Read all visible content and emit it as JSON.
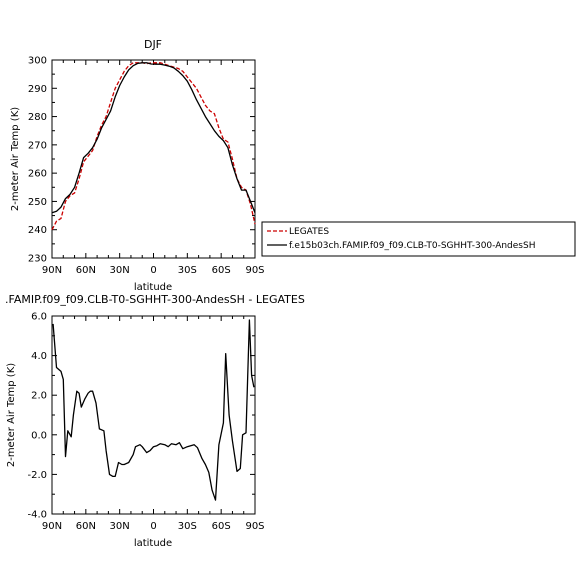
{
  "chart_data": [
    {
      "type": "line",
      "title": "DJF",
      "xlabel": "latitude",
      "ylabel": "2-meter Air Temp (K)",
      "xlim": [
        90,
        -90
      ],
      "ylim": [
        230,
        300
      ],
      "xticks": [
        "90N",
        "60N",
        "30N",
        "0",
        "30S",
        "60S",
        "90S"
      ],
      "xtick_values": [
        90,
        60,
        30,
        0,
        -30,
        -60,
        -90
      ],
      "yticks": [
        230,
        240,
        250,
        260,
        270,
        280,
        290,
        300
      ],
      "legend_placement": "right",
      "series": [
        {
          "name": "LEGATES",
          "color": "#cc0000",
          "dash": "dashed",
          "x": [
            90,
            86,
            82,
            78,
            74,
            70,
            66,
            62,
            58,
            54,
            50,
            46,
            42,
            38,
            34,
            30,
            26,
            22,
            18,
            14,
            10,
            6,
            2,
            -2,
            -6,
            -10,
            -14,
            -18,
            -22,
            -26,
            -30,
            -34,
            -38,
            -42,
            -46,
            -50,
            -54,
            -58,
            -62,
            -66,
            -70,
            -74,
            -78,
            -82,
            -86,
            -90
          ],
          "y": [
            240,
            243,
            244,
            250,
            252,
            253,
            258,
            264,
            266,
            268,
            273,
            277,
            280,
            285,
            290,
            293,
            296,
            298,
            299,
            299,
            299,
            298.7,
            299,
            299,
            299,
            298.5,
            298,
            297.5,
            297,
            296,
            294,
            292,
            290,
            287,
            284,
            282,
            281,
            276,
            272,
            271,
            265,
            258,
            255,
            254,
            249,
            242
          ]
        },
        {
          "name": "f.e15b03ch.FAMIP.f09_f09.CLB-T0-SGHHT-300-AndesSH",
          "color": "#000000",
          "dash": "solid",
          "x": [
            90,
            86,
            82,
            78,
            74,
            70,
            66,
            62,
            58,
            54,
            50,
            46,
            42,
            38,
            34,
            30,
            26,
            22,
            18,
            14,
            10,
            6,
            2,
            -2,
            -6,
            -10,
            -14,
            -18,
            -22,
            -26,
            -30,
            -34,
            -38,
            -42,
            -46,
            -50,
            -54,
            -58,
            -62,
            -66,
            -70,
            -74,
            -78,
            -82,
            -86,
            -90
          ],
          "y": [
            246,
            246.5,
            248,
            251,
            252.5,
            255,
            260,
            265.5,
            267,
            269,
            272,
            276,
            279,
            282,
            287,
            291,
            294,
            296.5,
            298,
            298.8,
            299,
            299,
            298.6,
            298.5,
            298.5,
            298.2,
            297.8,
            297.2,
            296,
            294.5,
            292.5,
            289.5,
            286,
            283,
            280,
            277.5,
            275,
            273,
            271.5,
            269,
            263,
            258,
            254,
            254,
            250,
            246
          ]
        }
      ]
    },
    {
      "type": "line",
      "title": ".FAMIP.f09_f09.CLB-T0-SGHHT-300-AndesSH - LEGATES",
      "xlabel": "latitude",
      "ylabel": "2-meter Air Temp (K)",
      "xlim": [
        90,
        -90
      ],
      "ylim": [
        -4.0,
        6.0
      ],
      "xticks": [
        "90N",
        "60N",
        "30N",
        "0",
        "30S",
        "60S",
        "90S"
      ],
      "xtick_values": [
        90,
        60,
        30,
        0,
        -30,
        -60,
        -90
      ],
      "yticks": [
        "-4.0",
        "-2.0",
        "0.0",
        "2.0",
        "4.0",
        "6.0"
      ],
      "ytick_values": [
        -4,
        -2,
        0,
        2,
        4,
        6
      ],
      "series": [
        {
          "color": "#000000",
          "dash": "solid",
          "x": [
            89,
            86,
            82,
            80,
            78,
            76,
            73,
            71,
            68,
            66,
            64,
            61,
            58,
            56,
            54,
            51,
            48,
            44,
            42,
            39,
            36,
            34,
            31,
            28,
            26,
            22,
            18,
            16,
            12,
            10,
            6,
            3,
            0,
            -3,
            -6,
            -10,
            -13,
            -16,
            -20,
            -23,
            -26,
            -30,
            -33,
            -36,
            -39,
            -43,
            -46,
            -49,
            -52,
            -55,
            -58,
            -62,
            -64,
            -67,
            -70,
            -74,
            -77,
            -79,
            -82,
            -85,
            -87,
            -89
          ],
          "y": [
            5.6,
            3.4,
            3.2,
            2.8,
            -1.1,
            0.2,
            -0.1,
            1.0,
            2.2,
            2.1,
            1.4,
            1.8,
            2.1,
            2.2,
            2.2,
            1.6,
            0.3,
            0.2,
            -0.8,
            -2.0,
            -2.1,
            -2.1,
            -1.4,
            -1.5,
            -1.5,
            -1.4,
            -1.0,
            -0.6,
            -0.5,
            -0.6,
            -0.9,
            -0.8,
            -0.6,
            -0.55,
            -0.45,
            -0.5,
            -0.6,
            -0.45,
            -0.5,
            -0.4,
            -0.7,
            -0.6,
            -0.55,
            -0.5,
            -0.65,
            -1.2,
            -1.5,
            -1.9,
            -2.8,
            -3.3,
            -0.5,
            0.6,
            4.1,
            1.0,
            -0.3,
            -1.85,
            -1.7,
            0.0,
            0.1,
            5.8,
            3.0,
            2.4
          ]
        }
      ]
    }
  ]
}
